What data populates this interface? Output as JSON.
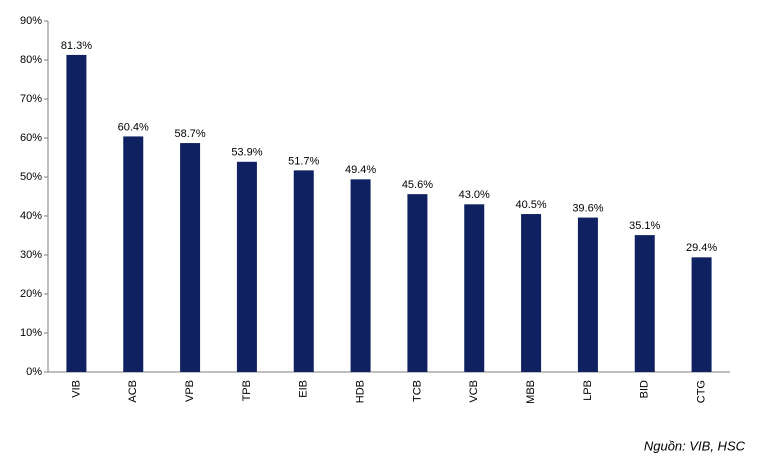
{
  "chart_data": {
    "type": "bar",
    "categories": [
      "VIB",
      "ACB",
      "VPB",
      "TPB",
      "EIB",
      "HDB",
      "TCB",
      "VCB",
      "MBB",
      "LPB",
      "BID",
      "CTG"
    ],
    "values": [
      81.3,
      60.4,
      58.7,
      53.9,
      51.7,
      49.4,
      45.6,
      43.0,
      40.5,
      39.6,
      35.1,
      29.4
    ],
    "value_labels": [
      "81.3%",
      "60.4%",
      "58.7%",
      "53.9%",
      "51.7%",
      "49.4%",
      "45.6%",
      "43.0%",
      "40.5%",
      "39.6%",
      "35.1%",
      "29.4%"
    ],
    "color": "#0f2161",
    "ylim": [
      0,
      90
    ],
    "yticks": [
      {
        "value": 0,
        "label": "0%"
      },
      {
        "value": 10,
        "label": "10%"
      },
      {
        "value": 20,
        "label": "20%"
      },
      {
        "value": 30,
        "label": "30%"
      },
      {
        "value": 40,
        "label": "40%"
      },
      {
        "value": 50,
        "label": "50%"
      },
      {
        "value": 60,
        "label": "60%"
      },
      {
        "value": 70,
        "label": "70%"
      },
      {
        "value": 80,
        "label": "80%"
      },
      {
        "value": 90,
        "label": "90%"
      }
    ],
    "grid": false,
    "source": "Nguồn: VIB, HSC"
  }
}
